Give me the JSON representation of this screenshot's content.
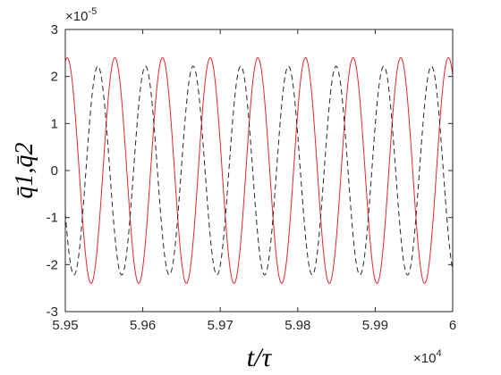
{
  "chart_data": {
    "type": "line",
    "xlabel": "t/τ",
    "ylabel": "q̄1,q̄2",
    "x_exponent_label": "×10",
    "x_exponent_power": "4",
    "y_exponent_label": "×10",
    "y_exponent_power": "-5",
    "xlim": [
      5.95,
      6.0
    ],
    "ylim": [
      -3,
      3
    ],
    "x_ticks": [
      "5.95",
      "5.96",
      "5.97",
      "5.98",
      "5.99",
      "6"
    ],
    "y_ticks": [
      "-3",
      "-2",
      "-1",
      "0",
      "1",
      "2",
      "3"
    ],
    "x_tick_values": [
      5.95,
      5.96,
      5.97,
      5.98,
      5.99,
      6.0
    ],
    "y_tick_values": [
      -3,
      -2,
      -1,
      0,
      1,
      2,
      3
    ],
    "grid": false,
    "series": [
      {
        "color": "#e8262b",
        "style": "solid",
        "amplitude": 2.4,
        "period": 0.00615,
        "peak_at": 5.9564
      },
      {
        "color": "#262626",
        "style": "dashed",
        "amplitude": 2.22,
        "period": 0.00615,
        "peak_at": 5.9542
      }
    ]
  }
}
